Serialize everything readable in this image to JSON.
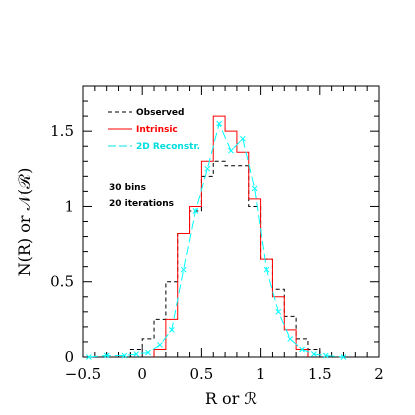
{
  "chart_data": {
    "type": "line",
    "xlabel": "R or ℛ",
    "ylabel": "N(R) or 𝒩(ℛ)",
    "xlim": [
      -0.5,
      2.0
    ],
    "ylim": [
      0,
      1.8
    ],
    "x_ticks": [
      {
        "value": -0.5,
        "label": "−0.5"
      },
      {
        "value": 0,
        "label": "0"
      },
      {
        "value": 0.5,
        "label": "0.5"
      },
      {
        "value": 1,
        "label": "1"
      },
      {
        "value": 1.5,
        "label": "1.5"
      },
      {
        "value": 2,
        "label": "2"
      }
    ],
    "y_ticks": [
      {
        "value": 0,
        "label": "0"
      },
      {
        "value": 0.5,
        "label": "0.5"
      },
      {
        "value": 1,
        "label": "1"
      },
      {
        "value": 1.5,
        "label": "1.5"
      }
    ],
    "annotations": [
      "30 bins",
      "20 iterations"
    ],
    "legend_position": "top-left",
    "series": [
      {
        "name": "Observed",
        "style": "step",
        "color": "#000000",
        "dash": "dashed",
        "bins": [
          {
            "x0": -0.1,
            "x1": 0.0,
            "y": 0.05
          },
          {
            "x0": 0.0,
            "x1": 0.1,
            "y": 0.12
          },
          {
            "x0": 0.1,
            "x1": 0.2,
            "y": 0.25
          },
          {
            "x0": 0.2,
            "x1": 0.3,
            "y": 0.5
          },
          {
            "x0": 0.3,
            "x1": 0.4,
            "y": 0.82
          },
          {
            "x0": 0.4,
            "x1": 0.5,
            "y": 0.97
          },
          {
            "x0": 0.5,
            "x1": 0.6,
            "y": 1.2
          },
          {
            "x0": 0.6,
            "x1": 0.7,
            "y": 1.3
          },
          {
            "x0": 0.7,
            "x1": 0.8,
            "y": 1.27
          },
          {
            "x0": 0.8,
            "x1": 0.9,
            "y": 1.27
          },
          {
            "x0": 0.9,
            "x1": 1.0,
            "y": 1.0
          },
          {
            "x0": 1.0,
            "x1": 1.1,
            "y": 0.65
          },
          {
            "x0": 1.1,
            "x1": 1.2,
            "y": 0.45
          },
          {
            "x0": 1.2,
            "x1": 1.3,
            "y": 0.27
          },
          {
            "x0": 1.3,
            "x1": 1.4,
            "y": 0.12
          },
          {
            "x0": 1.4,
            "x1": 1.5,
            "y": 0.05
          }
        ]
      },
      {
        "name": "Intrinsic",
        "style": "step",
        "color": "#ff0000",
        "dash": "solid",
        "bins": [
          {
            "x0": 0.1,
            "x1": 0.2,
            "y": 0.05
          },
          {
            "x0": 0.2,
            "x1": 0.3,
            "y": 0.25
          },
          {
            "x0": 0.3,
            "x1": 0.4,
            "y": 0.82
          },
          {
            "x0": 0.4,
            "x1": 0.5,
            "y": 1.0
          },
          {
            "x0": 0.5,
            "x1": 0.6,
            "y": 1.3
          },
          {
            "x0": 0.6,
            "x1": 0.7,
            "y": 1.6
          },
          {
            "x0": 0.7,
            "x1": 0.8,
            "y": 1.5
          },
          {
            "x0": 0.8,
            "x1": 0.9,
            "y": 1.36
          },
          {
            "x0": 0.9,
            "x1": 1.0,
            "y": 1.05
          },
          {
            "x0": 1.0,
            "x1": 1.1,
            "y": 0.65
          },
          {
            "x0": 1.1,
            "x1": 1.2,
            "y": 0.4
          },
          {
            "x0": 1.2,
            "x1": 1.3,
            "y": 0.18
          },
          {
            "x0": 1.3,
            "x1": 1.4,
            "y": 0.05
          }
        ]
      },
      {
        "name": "2D Reconstr.",
        "style": "line-markers",
        "color": "#00ffff",
        "dash": "longdash",
        "points": [
          {
            "x": -0.45,
            "y": 0.0
          },
          {
            "x": -0.3,
            "y": 0.01
          },
          {
            "x": -0.15,
            "y": 0.01
          },
          {
            "x": -0.05,
            "y": 0.02
          },
          {
            "x": 0.05,
            "y": 0.03
          },
          {
            "x": 0.15,
            "y": 0.08
          },
          {
            "x": 0.25,
            "y": 0.18
          },
          {
            "x": 0.35,
            "y": 0.58
          },
          {
            "x": 0.45,
            "y": 0.97
          },
          {
            "x": 0.55,
            "y": 1.25
          },
          {
            "x": 0.65,
            "y": 1.55
          },
          {
            "x": 0.75,
            "y": 1.37
          },
          {
            "x": 0.85,
            "y": 1.45
          },
          {
            "x": 0.95,
            "y": 1.12
          },
          {
            "x": 1.05,
            "y": 0.58
          },
          {
            "x": 1.15,
            "y": 0.3
          },
          {
            "x": 1.25,
            "y": 0.12
          },
          {
            "x": 1.35,
            "y": 0.05
          },
          {
            "x": 1.45,
            "y": 0.02
          },
          {
            "x": 1.55,
            "y": 0.01
          },
          {
            "x": 1.7,
            "y": 0.0
          }
        ]
      }
    ]
  }
}
